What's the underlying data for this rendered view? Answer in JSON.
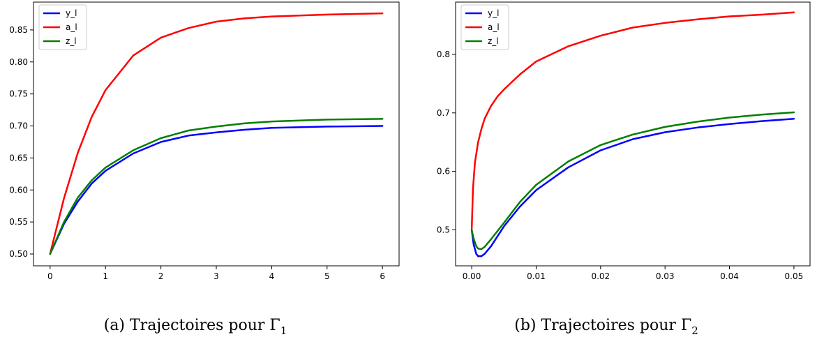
{
  "chart_data": [
    {
      "type": "line",
      "caption_prefix": "(a) Trajectoires pour Γ",
      "caption_subscript": "1",
      "xlim": [
        -0.3,
        6.3
      ],
      "ylim": [
        0.4815,
        0.8935
      ],
      "xticks": [
        0,
        1,
        2,
        3,
        4,
        5,
        6
      ],
      "xtick_labels": [
        "0",
        "1",
        "2",
        "3",
        "4",
        "5",
        "6"
      ],
      "yticks": [
        0.5,
        0.55,
        0.6,
        0.65,
        0.7,
        0.75,
        0.8,
        0.85
      ],
      "ytick_labels": [
        "0.50",
        "0.55",
        "0.60",
        "0.65",
        "0.70",
        "0.75",
        "0.80",
        "0.85"
      ],
      "legend_position": "top-left",
      "grid": false,
      "series": [
        {
          "name": "y_l",
          "color": "#0000ff",
          "x": [
            0,
            0.25,
            0.5,
            0.75,
            1,
            1.5,
            2,
            2.5,
            3,
            3.5,
            4,
            5,
            6
          ],
          "y": [
            0.5,
            0.547,
            0.582,
            0.61,
            0.63,
            0.657,
            0.675,
            0.685,
            0.69,
            0.694,
            0.697,
            0.699,
            0.7
          ]
        },
        {
          "name": "a_l",
          "color": "#ff0000",
          "x": [
            0,
            0.25,
            0.5,
            0.75,
            1,
            1.5,
            2,
            2.5,
            3,
            3.5,
            4,
            5,
            6
          ],
          "y": [
            0.5,
            0.587,
            0.658,
            0.714,
            0.756,
            0.81,
            0.838,
            0.853,
            0.863,
            0.868,
            0.871,
            0.874,
            0.876
          ]
        },
        {
          "name": "z_l",
          "color": "#008000",
          "x": [
            0,
            0.25,
            0.5,
            0.75,
            1,
            1.5,
            2,
            2.5,
            3,
            3.5,
            4,
            5,
            6
          ],
          "y": [
            0.5,
            0.55,
            0.588,
            0.615,
            0.635,
            0.662,
            0.681,
            0.693,
            0.699,
            0.704,
            0.707,
            0.71,
            0.711
          ]
        }
      ]
    },
    {
      "type": "line",
      "caption_prefix": "(b) Trajectoires pour Γ",
      "caption_subscript": "2",
      "xlim": [
        -0.0025,
        0.0525
      ],
      "ylim": [
        0.4385,
        0.8895
      ],
      "xticks": [
        0,
        0.01,
        0.02,
        0.03,
        0.04,
        0.05
      ],
      "xtick_labels": [
        "0.00",
        "0.01",
        "0.02",
        "0.03",
        "0.04",
        "0.05"
      ],
      "yticks": [
        0.5,
        0.6,
        0.7,
        0.8
      ],
      "ytick_labels": [
        "0.5",
        "0.6",
        "0.7",
        "0.8"
      ],
      "legend_position": "top-left",
      "grid": false,
      "series": [
        {
          "name": "y_l",
          "color": "#0000ff",
          "x": [
            0,
            0.0003,
            0.0007,
            0.001,
            0.0015,
            0.002,
            0.003,
            0.005,
            0.0075,
            0.01,
            0.015,
            0.02,
            0.025,
            0.03,
            0.035,
            0.04,
            0.045,
            0.05
          ],
          "y": [
            0.5,
            0.475,
            0.459,
            0.455,
            0.455,
            0.459,
            0.472,
            0.506,
            0.54,
            0.568,
            0.607,
            0.636,
            0.655,
            0.667,
            0.675,
            0.681,
            0.686,
            0.69
          ]
        },
        {
          "name": "a_l",
          "color": "#ff0000",
          "x": [
            0,
            0.0002,
            0.0005,
            0.001,
            0.0015,
            0.002,
            0.003,
            0.004,
            0.005,
            0.0075,
            0.01,
            0.015,
            0.02,
            0.025,
            0.03,
            0.035,
            0.04,
            0.045,
            0.05
          ],
          "y": [
            0.5,
            0.57,
            0.615,
            0.65,
            0.672,
            0.69,
            0.712,
            0.728,
            0.74,
            0.766,
            0.788,
            0.814,
            0.832,
            0.846,
            0.854,
            0.86,
            0.865,
            0.868,
            0.872
          ]
        },
        {
          "name": "z_l",
          "color": "#008000",
          "x": [
            0,
            0.0003,
            0.0007,
            0.001,
            0.0015,
            0.002,
            0.003,
            0.005,
            0.0075,
            0.01,
            0.015,
            0.02,
            0.025,
            0.03,
            0.035,
            0.04,
            0.045,
            0.05
          ],
          "y": [
            0.5,
            0.485,
            0.472,
            0.468,
            0.467,
            0.471,
            0.484,
            0.512,
            0.548,
            0.577,
            0.617,
            0.645,
            0.663,
            0.676,
            0.685,
            0.692,
            0.697,
            0.701
          ]
        }
      ]
    }
  ]
}
